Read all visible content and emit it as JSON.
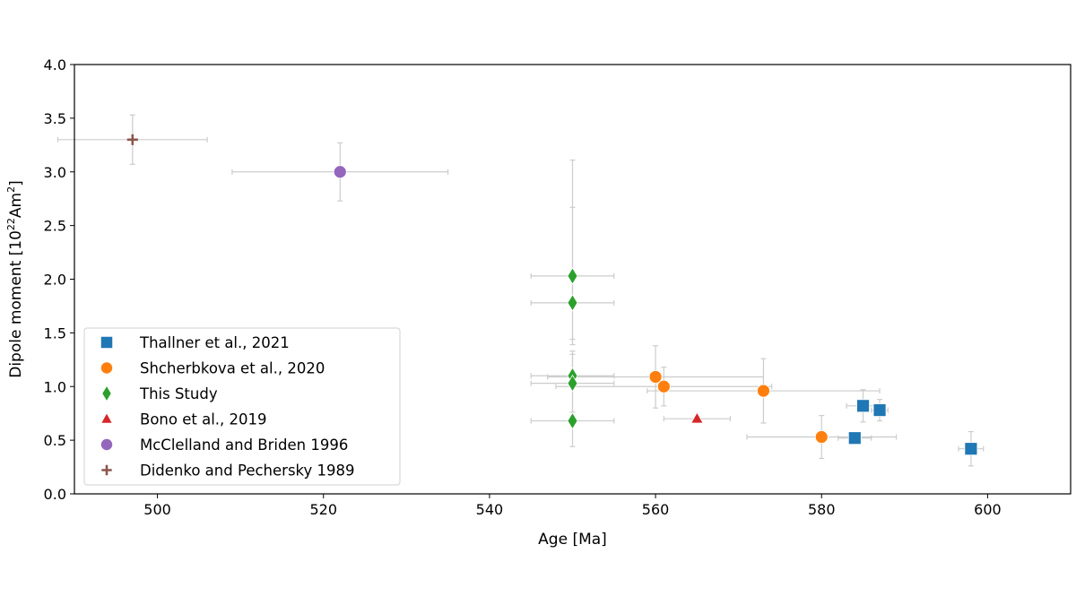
{
  "chart_data": {
    "type": "scatter",
    "title": "",
    "xlabel": "Age [Ma]",
    "ylabel": {
      "prefix": "Dipole moment [10",
      "sup1": "22",
      "mid": "Am",
      "sup2": "2",
      "suffix": "]"
    },
    "xlim": [
      490,
      610
    ],
    "ylim": [
      0.0,
      4.0
    ],
    "xticks": [
      "500",
      "520",
      "540",
      "560",
      "580",
      "600"
    ],
    "xtick_values": [
      500,
      520,
      540,
      560,
      580,
      600
    ],
    "yticks": [
      "0.0",
      "0.5",
      "1.0",
      "1.5",
      "2.0",
      "2.5",
      "3.0",
      "3.5",
      "4.0"
    ],
    "ytick_values": [
      0.0,
      0.5,
      1.0,
      1.5,
      2.0,
      2.5,
      3.0,
      3.5,
      4.0
    ],
    "grid": false,
    "legend_position": "lower-left",
    "errorbar_color": "#cccccc",
    "series": [
      {
        "name": "Thallner et al., 2021",
        "marker": "square",
        "color": "#1f77b4",
        "points": [
          {
            "x": 584,
            "y": 0.52,
            "xerr": [
              2,
              2
            ],
            "yerr": [
              0.05,
              0.05
            ]
          },
          {
            "x": 585,
            "y": 0.82,
            "xerr": [
              2,
              2
            ],
            "yerr": [
              0.15,
              0.15
            ]
          },
          {
            "x": 587,
            "y": 0.78,
            "xerr": [
              1,
              1
            ],
            "yerr": [
              0.1,
              0.1
            ]
          },
          {
            "x": 598,
            "y": 0.42,
            "xerr": [
              1.5,
              1.5
            ],
            "yerr": [
              0.16,
              0.16
            ]
          }
        ]
      },
      {
        "name": "Shcherbkova et al., 2020",
        "marker": "circle",
        "color": "#ff7f0e",
        "points": [
          {
            "x": 560,
            "y": 1.09,
            "xerr": [
              13,
              13
            ],
            "yerr": [
              0.29,
              0.29
            ]
          },
          {
            "x": 561,
            "y": 1.0,
            "xerr": [
              13,
              13
            ],
            "yerr": [
              0.18,
              0.18
            ]
          },
          {
            "x": 573,
            "y": 0.96,
            "xerr": [
              14,
              14
            ],
            "yerr": [
              0.3,
              0.3
            ]
          },
          {
            "x": 580,
            "y": 0.53,
            "xerr": [
              9,
              9
            ],
            "yerr": [
              0.2,
              0.2
            ]
          }
        ]
      },
      {
        "name": "This Study",
        "marker": "thin_diamond",
        "color": "#2ca02c",
        "points": [
          {
            "x": 550,
            "y": 2.03,
            "xerr": [
              5,
              5
            ],
            "yerr": [
              0.64,
              1.08
            ]
          },
          {
            "x": 550,
            "y": 1.78,
            "xerr": [
              5,
              5
            ],
            "yerr": [
              0.34,
              0.89
            ]
          },
          {
            "x": 550,
            "y": 1.1,
            "xerr": [
              5,
              5
            ],
            "yerr": [
              0.42,
              0.23
            ]
          },
          {
            "x": 550,
            "y": 1.03,
            "xerr": [
              5,
              5
            ],
            "yerr": [
              0.31,
              0.27
            ]
          },
          {
            "x": 550,
            "y": 0.68,
            "xerr": [
              5,
              5
            ],
            "yerr": [
              0.24,
              0.08
            ]
          }
        ]
      },
      {
        "name": "Bono et al., 2019",
        "marker": "triangle",
        "color": "#d62728",
        "points": [
          {
            "x": 565,
            "y": 0.7,
            "xerr": [
              4,
              4
            ],
            "yerr": [
              0,
              0
            ]
          }
        ]
      },
      {
        "name": "McClelland and Briden 1996",
        "marker": "circle",
        "color": "#9467bd",
        "points": [
          {
            "x": 522,
            "y": 3.0,
            "xerr": [
              13,
              13
            ],
            "yerr": [
              0.27,
              0.27
            ]
          }
        ]
      },
      {
        "name": "Didenko and Pechersky 1989",
        "marker": "plus",
        "color": "#8c564b",
        "points": [
          {
            "x": 497,
            "y": 3.3,
            "xerr": [
              9,
              9
            ],
            "yerr": [
              0.23,
              0.23
            ]
          }
        ]
      }
    ]
  }
}
